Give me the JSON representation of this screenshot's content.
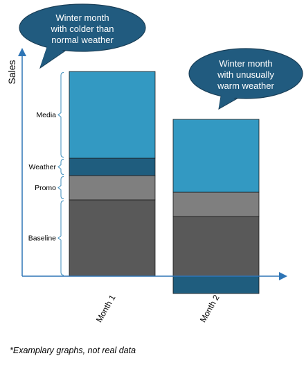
{
  "chart_data": {
    "type": "bar",
    "stacked": true,
    "ylabel": "Sales",
    "categories": [
      "Month 1",
      "Month 2"
    ],
    "series": [
      {
        "name": "Baseline",
        "values": [
          110,
          86
        ]
      },
      {
        "name": "Promo",
        "values": [
          35,
          35
        ]
      },
      {
        "name": "Weather",
        "values": [
          25,
          -25
        ]
      },
      {
        "name": "Media",
        "values": [
          125,
          105
        ]
      }
    ],
    "ylim": [
      -30,
      325
    ],
    "annotations": [
      {
        "target": "Month 1",
        "text": [
          "Winter month",
          "with colder than",
          "normal weather"
        ]
      },
      {
        "target": "Month 2",
        "text": [
          "Winter month",
          "with unusually",
          "warm weather"
        ]
      }
    ],
    "colors": {
      "Baseline": "#595959",
      "Promo": "#7f7f7f",
      "Weather": "#1f5d7e",
      "Media": "#3399c2",
      "axis": "#2e75b6",
      "bracket": "#3c8dbc",
      "callout": "#215b7f"
    }
  },
  "footnote": "*Examplary graphs, not real data"
}
